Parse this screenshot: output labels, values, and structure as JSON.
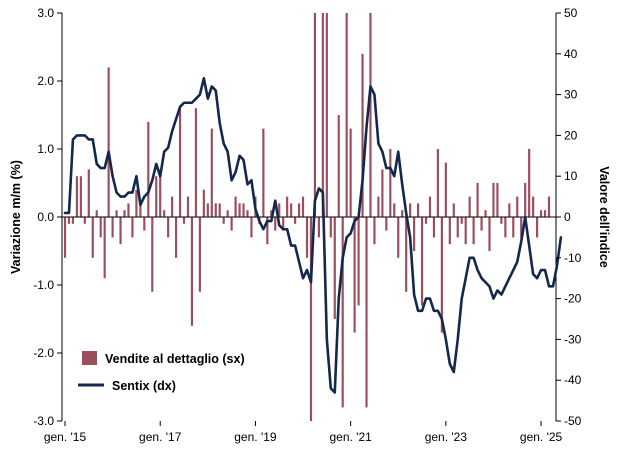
{
  "chart_data": {
    "type": "bar+line",
    "title": "",
    "xlabel": "",
    "left_axis": {
      "label": "Variazione m/m (%)",
      "ylim": [
        -3.0,
        3.0
      ],
      "ticks": [
        "3.0",
        "2.0",
        "1.0",
        "0.0",
        "-1.0",
        "-2.0",
        "-3.0"
      ],
      "tick_values": [
        3,
        2,
        1,
        0,
        -1,
        -2,
        -3
      ]
    },
    "right_axis": {
      "label": "Valore dell'indice",
      "ylim": [
        -50,
        50
      ],
      "ticks": [
        "50",
        "40",
        "30",
        "20",
        "10",
        "0",
        "-10",
        "-20",
        "-30",
        "-40",
        "-50"
      ],
      "tick_values": [
        50,
        40,
        30,
        20,
        10,
        0,
        -10,
        -20,
        -30,
        -40,
        -50
      ]
    },
    "x_ticks": [
      "gen. '15",
      "gen. '17",
      "gen. '19",
      "gen. '21",
      "gen. '23",
      "gen. '25"
    ],
    "x_tick_index": [
      0,
      24,
      48,
      72,
      96,
      120
    ],
    "legend": {
      "placement": "bottom-left"
    },
    "series": [
      {
        "name": "Vendite al dettaglio (sx)",
        "type": "bar",
        "axis": "left",
        "color": "#9b4f5e",
        "values": [
          -0.6,
          -0.1,
          -0.1,
          0.6,
          0.6,
          -0.1,
          0.7,
          -0.6,
          0.1,
          -0.3,
          -0.9,
          2.2,
          -0.3,
          0.1,
          -0.4,
          0.1,
          0.2,
          -0.3,
          0.4,
          0.2,
          -0.2,
          1.4,
          -1.1,
          0.6,
          0.7,
          0.1,
          -0.3,
          0.3,
          -0.6,
          1.6,
          -0.1,
          0.3,
          -1.6,
          1.6,
          -1.1,
          0.4,
          0.2,
          1.3,
          0.2,
          0.2,
          -0.1,
          0.1,
          -0.2,
          0.3,
          0.2,
          0.2,
          0.1,
          -0.3,
          0.3,
          -0.1,
          1.3,
          -0.4,
          0.1,
          -0.2,
          0.2,
          -0.2,
          0.3,
          0.2,
          -0.1,
          0.2,
          0.3,
          -0.6,
          -3.0,
          3.0,
          -0.3,
          3.0,
          3.0,
          -0.3,
          -1.5,
          1.5,
          -2.8,
          3.0,
          1.3,
          -1.7,
          -1.3,
          2.4,
          -2.8,
          3.0,
          -0.4,
          0.3,
          0.7,
          -0.2,
          1.0,
          0.2,
          -0.6,
          0.1,
          -1.1,
          0.2,
          -0.5,
          0.2,
          -1.3,
          -0.1,
          0.3,
          -0.3,
          1.0,
          -1.7,
          0.8,
          -0.4,
          0.2,
          -0.3,
          -0.1,
          -0.4,
          0.3,
          -0.4,
          0.5,
          -0.2,
          0.1,
          -0.5,
          0.5,
          0.5,
          -0.1,
          -0.3,
          0.2,
          -0.3,
          0.3,
          -0.3,
          0.5,
          1.0,
          0.3,
          -0.3,
          0.1,
          0.1,
          0.3
        ],
        "note": "Bars beyond ±3.0 are clipped at the axis limits"
      },
      {
        "name": "Sentix (dx)",
        "type": "line",
        "axis": "right",
        "color": "#14284b",
        "values": [
          1,
          1,
          19,
          20,
          20,
          20,
          19,
          19,
          13,
          12,
          12,
          16,
          10,
          6,
          5,
          5,
          6,
          6,
          10,
          3,
          5,
          6,
          9,
          13,
          10,
          16,
          17,
          21,
          24,
          27,
          28,
          28,
          28,
          29,
          30,
          34,
          29,
          32,
          31,
          23,
          18,
          16,
          9,
          11,
          15,
          14,
          8,
          9,
          2,
          -1,
          -3,
          -1,
          -1,
          4,
          -2,
          -3,
          -3,
          -7,
          -7,
          -11,
          -15,
          -13,
          -16,
          4,
          7,
          6,
          -30,
          -42,
          -43,
          -20,
          -10,
          -5,
          -4,
          -1,
          0,
          9,
          22,
          32,
          30,
          18,
          16,
          12,
          12,
          10,
          16,
          8,
          1,
          -5,
          -19,
          -23,
          -23,
          -20,
          -20,
          -23,
          -23,
          -25,
          -30,
          -36,
          -38,
          -30,
          -20,
          -15,
          -10,
          -10,
          -13,
          -15,
          -16,
          -17,
          -20,
          -18,
          -19,
          -17,
          -15,
          -13,
          -11,
          -6,
          0,
          -7,
          -14,
          -15,
          -13,
          -13,
          -17,
          -17,
          -12,
          -5
        ]
      }
    ]
  }
}
